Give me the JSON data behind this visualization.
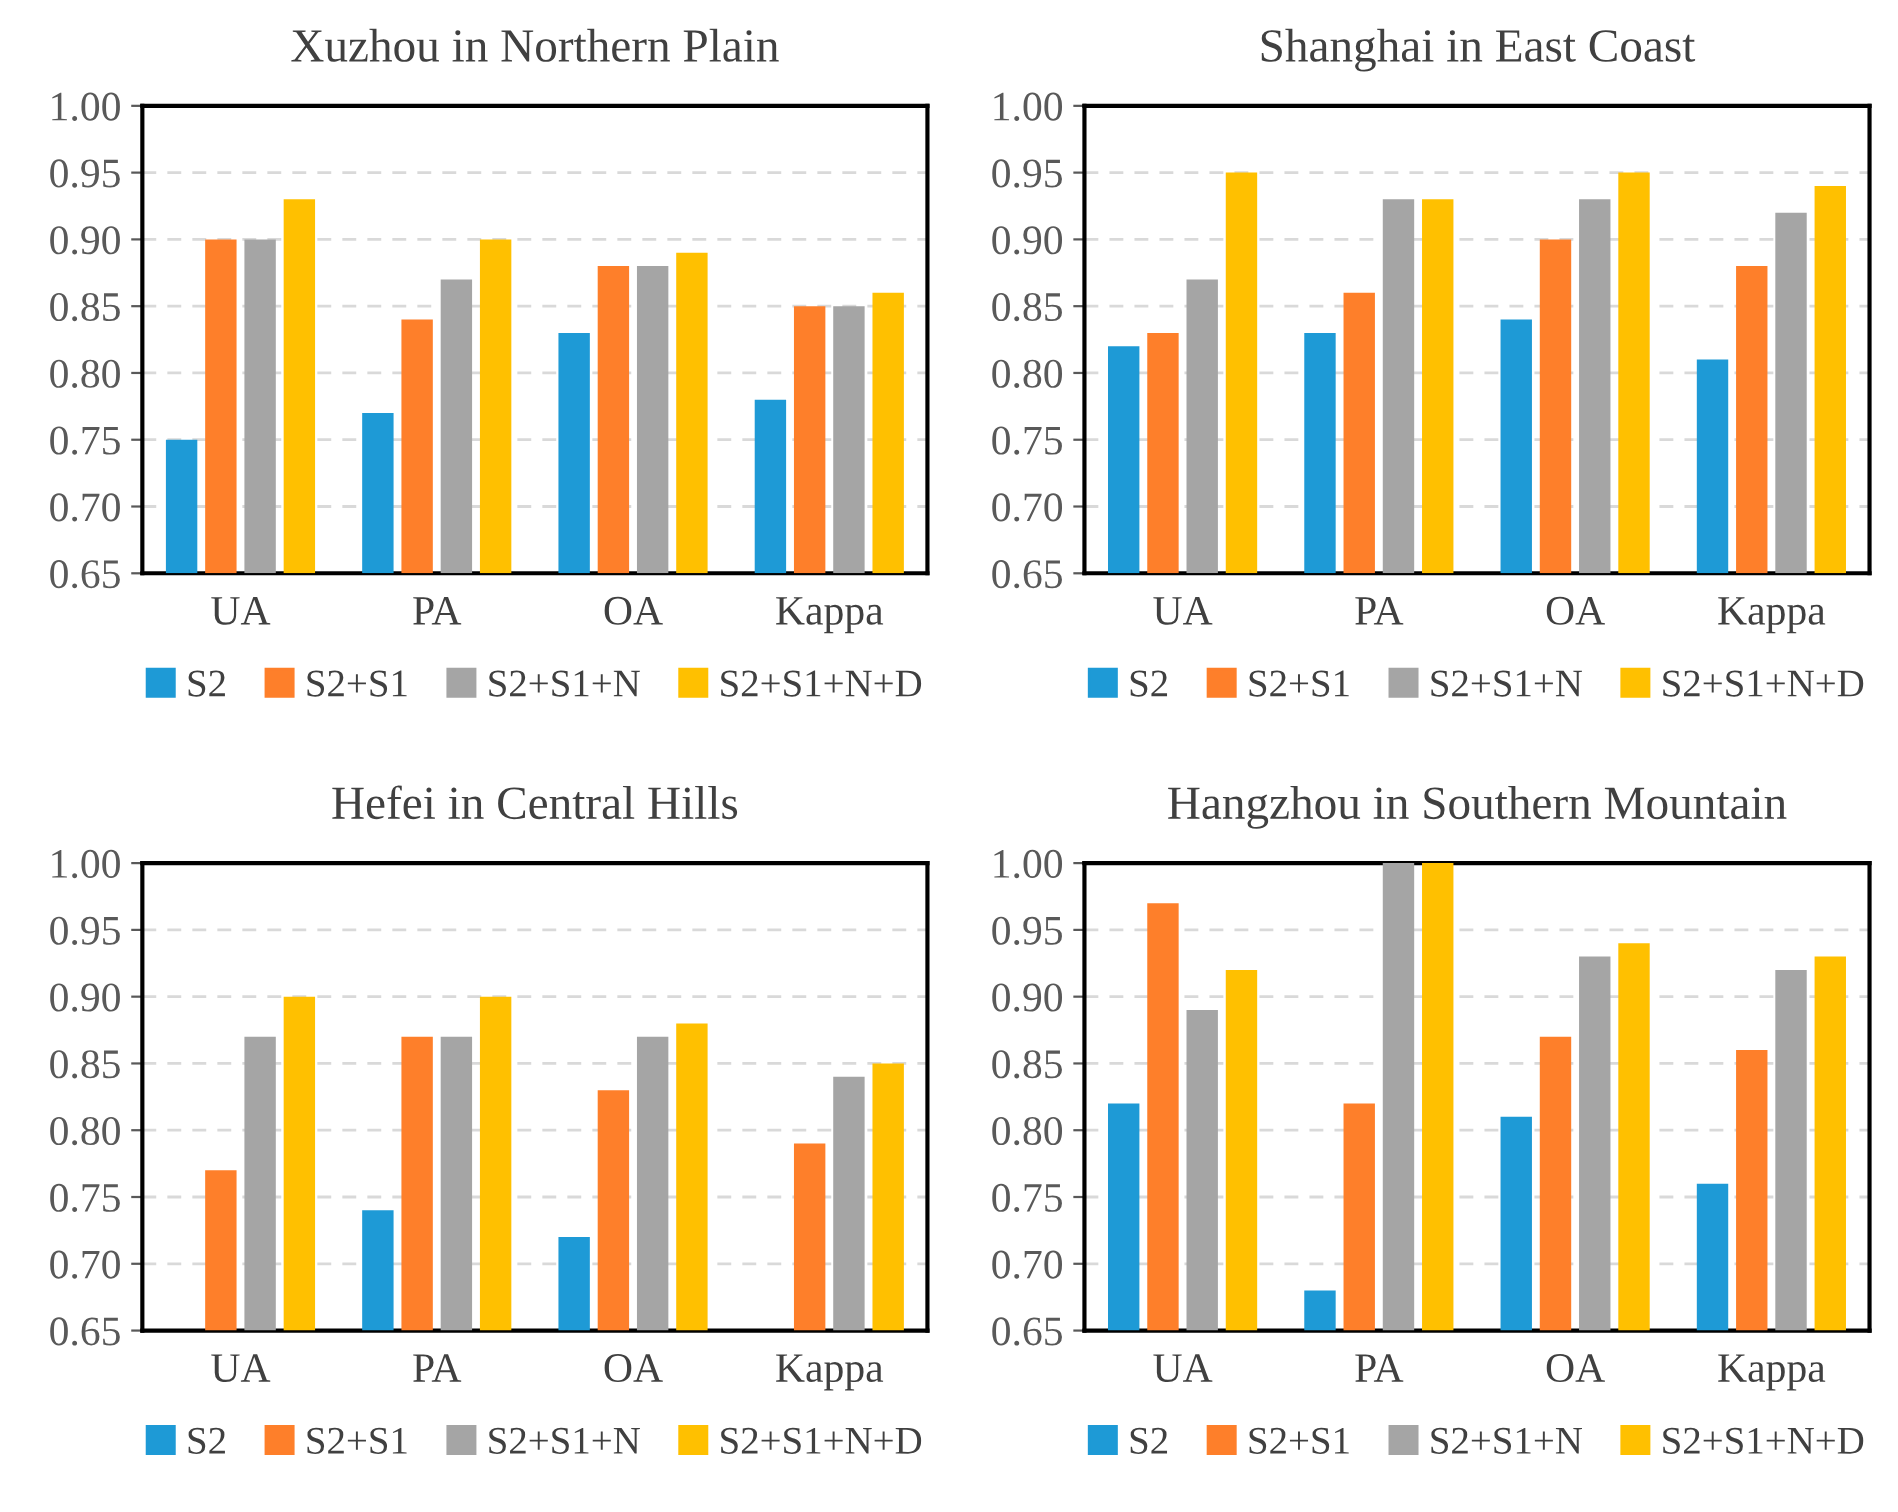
{
  "chart_data": [
    {
      "type": "bar",
      "title": "Xuzhou in Northern Plain",
      "categories": [
        "UA",
        "PA",
        "OA",
        "Kappa"
      ],
      "ylim": [
        0.65,
        1.0
      ],
      "yticks": [
        {
          "value": 0.65,
          "label": "0.65"
        },
        {
          "value": 0.7,
          "label": "0.70"
        },
        {
          "value": 0.75,
          "label": "0.75"
        },
        {
          "value": 0.8,
          "label": "0.80"
        },
        {
          "value": 0.85,
          "label": "0.85"
        },
        {
          "value": 0.9,
          "label": "0.90"
        },
        {
          "value": 0.95,
          "label": "0.95"
        },
        {
          "value": 1.0,
          "label": "1.00"
        }
      ],
      "grid": "y",
      "legend": "bottom",
      "series": [
        {
          "name": "S2",
          "color": "#1e9ad6",
          "values": [
            0.75,
            0.77,
            0.83,
            0.78
          ]
        },
        {
          "name": "S2+S1",
          "color": "#fe7f2a",
          "values": [
            0.9,
            0.84,
            0.88,
            0.85
          ]
        },
        {
          "name": "S2+S1+N",
          "color": "#a5a5a5",
          "values": [
            0.9,
            0.87,
            0.88,
            0.85
          ]
        },
        {
          "name": "S2+S1+N+D",
          "color": "#ffc000",
          "values": [
            0.93,
            0.9,
            0.89,
            0.86
          ]
        }
      ]
    },
    {
      "type": "bar",
      "title": "Shanghai in East Coast",
      "categories": [
        "UA",
        "PA",
        "OA",
        "Kappa"
      ],
      "ylim": [
        0.65,
        1.0
      ],
      "yticks": [
        {
          "value": 0.65,
          "label": "0.65"
        },
        {
          "value": 0.7,
          "label": "0.70"
        },
        {
          "value": 0.75,
          "label": "0.75"
        },
        {
          "value": 0.8,
          "label": "0.80"
        },
        {
          "value": 0.85,
          "label": "0.85"
        },
        {
          "value": 0.9,
          "label": "0.90"
        },
        {
          "value": 0.95,
          "label": "0.95"
        },
        {
          "value": 1.0,
          "label": "1.00"
        }
      ],
      "grid": "y",
      "legend": "bottom",
      "series": [
        {
          "name": "S2",
          "color": "#1e9ad6",
          "values": [
            0.82,
            0.83,
            0.84,
            0.81
          ]
        },
        {
          "name": "S2+S1",
          "color": "#fe7f2a",
          "values": [
            0.83,
            0.86,
            0.9,
            0.88
          ]
        },
        {
          "name": "S2+S1+N",
          "color": "#a5a5a5",
          "values": [
            0.87,
            0.93,
            0.93,
            0.92
          ]
        },
        {
          "name": "S2+S1+N+D",
          "color": "#ffc000",
          "values": [
            0.95,
            0.93,
            0.95,
            0.94
          ]
        }
      ]
    },
    {
      "type": "bar",
      "title": "Hefei in Central Hills",
      "categories": [
        "UA",
        "PA",
        "OA",
        "Kappa"
      ],
      "ylim": [
        0.65,
        1.0
      ],
      "yticks": [
        {
          "value": 0.65,
          "label": "0.65"
        },
        {
          "value": 0.7,
          "label": "0.70"
        },
        {
          "value": 0.75,
          "label": "0.75"
        },
        {
          "value": 0.8,
          "label": "0.80"
        },
        {
          "value": 0.85,
          "label": "0.85"
        },
        {
          "value": 0.9,
          "label": "0.90"
        },
        {
          "value": 0.95,
          "label": "0.95"
        },
        {
          "value": 1.0,
          "label": "1.00"
        }
      ],
      "grid": "y",
      "legend": "bottom",
      "series": [
        {
          "name": "S2",
          "color": "#1e9ad6",
          "values": [
            null,
            0.74,
            0.72,
            null
          ]
        },
        {
          "name": "S2+S1",
          "color": "#fe7f2a",
          "values": [
            0.77,
            0.87,
            0.83,
            0.79
          ]
        },
        {
          "name": "S2+S1+N",
          "color": "#a5a5a5",
          "values": [
            0.87,
            0.87,
            0.87,
            0.84
          ]
        },
        {
          "name": "S2+S1+N+D",
          "color": "#ffc000",
          "values": [
            0.9,
            0.9,
            0.88,
            0.85
          ]
        }
      ]
    },
    {
      "type": "bar",
      "title": "Hangzhou in Southern Mountain",
      "categories": [
        "UA",
        "PA",
        "OA",
        "Kappa"
      ],
      "ylim": [
        0.65,
        1.0
      ],
      "yticks": [
        {
          "value": 0.65,
          "label": "0.65"
        },
        {
          "value": 0.7,
          "label": "0.70"
        },
        {
          "value": 0.75,
          "label": "0.75"
        },
        {
          "value": 0.8,
          "label": "0.80"
        },
        {
          "value": 0.85,
          "label": "0.85"
        },
        {
          "value": 0.9,
          "label": "0.90"
        },
        {
          "value": 0.95,
          "label": "0.95"
        },
        {
          "value": 1.0,
          "label": "1.00"
        }
      ],
      "grid": "y",
      "legend": "bottom",
      "series": [
        {
          "name": "S2",
          "color": "#1e9ad6",
          "values": [
            0.82,
            0.68,
            0.81,
            0.76
          ]
        },
        {
          "name": "S2+S1",
          "color": "#fe7f2a",
          "values": [
            0.97,
            0.82,
            0.87,
            0.86
          ]
        },
        {
          "name": "S2+S1+N",
          "color": "#a5a5a5",
          "values": [
            0.89,
            1.0,
            0.93,
            0.92
          ]
        },
        {
          "name": "S2+S1+N+D",
          "color": "#ffc000",
          "values": [
            0.92,
            1.0,
            0.94,
            0.93
          ]
        }
      ]
    }
  ]
}
